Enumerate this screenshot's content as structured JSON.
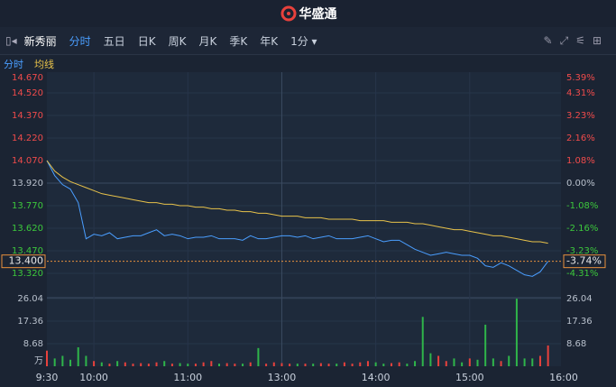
{
  "app": {
    "brand": "华盛通",
    "stock_name": "新秀丽",
    "tabs": [
      "分时",
      "五日",
      "日K",
      "周K",
      "月K",
      "季K",
      "年K"
    ],
    "interval": "1分",
    "legend": [
      "分时",
      "均线"
    ]
  },
  "chart_data": {
    "type": "intraday",
    "x": [
      "9:30",
      "9:35",
      "9:40",
      "9:45",
      "9:50",
      "9:55",
      "10:00",
      "10:05",
      "10:10",
      "10:15",
      "10:20",
      "10:25",
      "10:30",
      "10:35",
      "10:40",
      "10:45",
      "10:50",
      "10:55",
      "11:00",
      "11:05",
      "11:10",
      "11:15",
      "11:20",
      "11:25",
      "11:30",
      "11:35",
      "11:40",
      "11:45",
      "11:50",
      "11:55",
      "13:00",
      "13:05",
      "13:10",
      "13:15",
      "13:20",
      "13:25",
      "13:30",
      "13:35",
      "13:40",
      "13:45",
      "13:50",
      "13:55",
      "14:00",
      "14:05",
      "14:10",
      "14:15",
      "14:20",
      "14:25",
      "14:30",
      "14:35",
      "14:40",
      "14:45",
      "14:50",
      "14:55",
      "15:00",
      "15:05",
      "15:10",
      "15:15",
      "15:20",
      "15:25",
      "15:30",
      "15:35",
      "15:40",
      "15:45",
      "15:50"
    ],
    "series": [
      {
        "name": "分时",
        "color": "#4a9eff",
        "values": [
          14.07,
          13.97,
          13.91,
          13.88,
          13.79,
          13.55,
          13.58,
          13.57,
          13.59,
          13.55,
          13.56,
          13.57,
          13.57,
          13.59,
          13.61,
          13.57,
          13.58,
          13.57,
          13.55,
          13.56,
          13.56,
          13.57,
          13.55,
          13.55,
          13.55,
          13.54,
          13.57,
          13.55,
          13.55,
          13.56,
          13.57,
          13.57,
          13.56,
          13.57,
          13.55,
          13.56,
          13.57,
          13.55,
          13.55,
          13.55,
          13.56,
          13.57,
          13.55,
          13.53,
          13.54,
          13.54,
          13.51,
          13.48,
          13.46,
          13.44,
          13.45,
          13.46,
          13.45,
          13.44,
          13.44,
          13.42,
          13.37,
          13.36,
          13.39,
          13.37,
          13.34,
          13.31,
          13.3,
          13.33,
          13.4
        ]
      },
      {
        "name": "均线",
        "color": "#e8c24a",
        "values": [
          14.07,
          14.0,
          13.96,
          13.93,
          13.91,
          13.89,
          13.87,
          13.85,
          13.84,
          13.83,
          13.82,
          13.81,
          13.8,
          13.79,
          13.79,
          13.78,
          13.78,
          13.77,
          13.77,
          13.76,
          13.76,
          13.75,
          13.75,
          13.74,
          13.74,
          13.73,
          13.73,
          13.72,
          13.72,
          13.71,
          13.7,
          13.7,
          13.7,
          13.69,
          13.69,
          13.69,
          13.68,
          13.68,
          13.68,
          13.68,
          13.67,
          13.67,
          13.67,
          13.67,
          13.66,
          13.66,
          13.66,
          13.65,
          13.65,
          13.64,
          13.63,
          13.62,
          13.61,
          13.61,
          13.6,
          13.59,
          13.58,
          13.57,
          13.57,
          13.56,
          13.55,
          13.54,
          13.53,
          13.53,
          13.52
        ]
      }
    ],
    "volume": {
      "values": [
        6,
        3,
        4,
        2.5,
        7.3,
        4,
        2,
        1.5,
        1,
        2,
        1.5,
        1,
        1.2,
        1,
        1.5,
        2,
        1,
        1.2,
        1,
        1,
        1.5,
        2,
        1,
        1.2,
        1,
        1,
        1.5,
        7,
        1,
        1.5,
        1.2,
        1,
        1,
        1,
        1,
        1.2,
        1,
        1,
        1.5,
        1,
        1.5,
        2,
        1.5,
        1,
        1.2,
        1.5,
        1,
        2,
        19,
        5,
        4,
        2,
        3,
        1.5,
        3,
        2.5,
        16,
        3,
        2,
        4,
        26,
        3,
        3,
        4,
        8
      ],
      "unit": "万",
      "ylim": [
        0,
        26.04
      ],
      "yticks": [
        8.68,
        17.36,
        26.04
      ],
      "up_color": "#e8413c",
      "down_color": "#2fb54a"
    },
    "xlim": [
      "9:30",
      "16:00"
    ],
    "xticks": [
      "9:30",
      "10:00",
      "11:00",
      "13:00",
      "14:00",
      "15:00",
      "16:00"
    ],
    "ylim": [
      13.17,
      14.67
    ],
    "yticks": [
      {
        "value": 14.67,
        "label": "14.670"
      },
      {
        "value": 14.52,
        "label": "14.520"
      },
      {
        "value": 14.37,
        "label": "14.370"
      },
      {
        "value": 14.22,
        "label": "14.220"
      },
      {
        "value": 14.07,
        "label": "14.070"
      },
      {
        "value": 13.92,
        "label": "13.920"
      },
      {
        "value": 13.77,
        "label": "13.770"
      },
      {
        "value": 13.62,
        "label": "13.620"
      },
      {
        "value": 13.47,
        "label": "13.470"
      },
      {
        "value": 13.32,
        "label": "13.320"
      }
    ],
    "y2lim": [
      -5.39,
      5.39
    ],
    "y2ticks": [
      {
        "value": 5.39,
        "label": "5.39%"
      },
      {
        "value": 4.31,
        "label": "4.31%"
      },
      {
        "value": 3.23,
        "label": "3.23%"
      },
      {
        "value": 2.16,
        "label": "2.16%"
      },
      {
        "value": 1.08,
        "label": "1.08%"
      },
      {
        "value": 0,
        "label": "0.00%"
      },
      {
        "value": -1.08,
        "label": "-1.08%"
      },
      {
        "value": -2.16,
        "label": "-2.16%"
      },
      {
        "value": -3.23,
        "label": "-3.23%"
      },
      {
        "value": -4.31,
        "label": "-4.31%"
      }
    ],
    "current_price": {
      "value": 13.4,
      "label": "13.400"
    },
    "current_change": {
      "value": -3.74,
      "label": "-3.74%"
    },
    "grid": true
  }
}
